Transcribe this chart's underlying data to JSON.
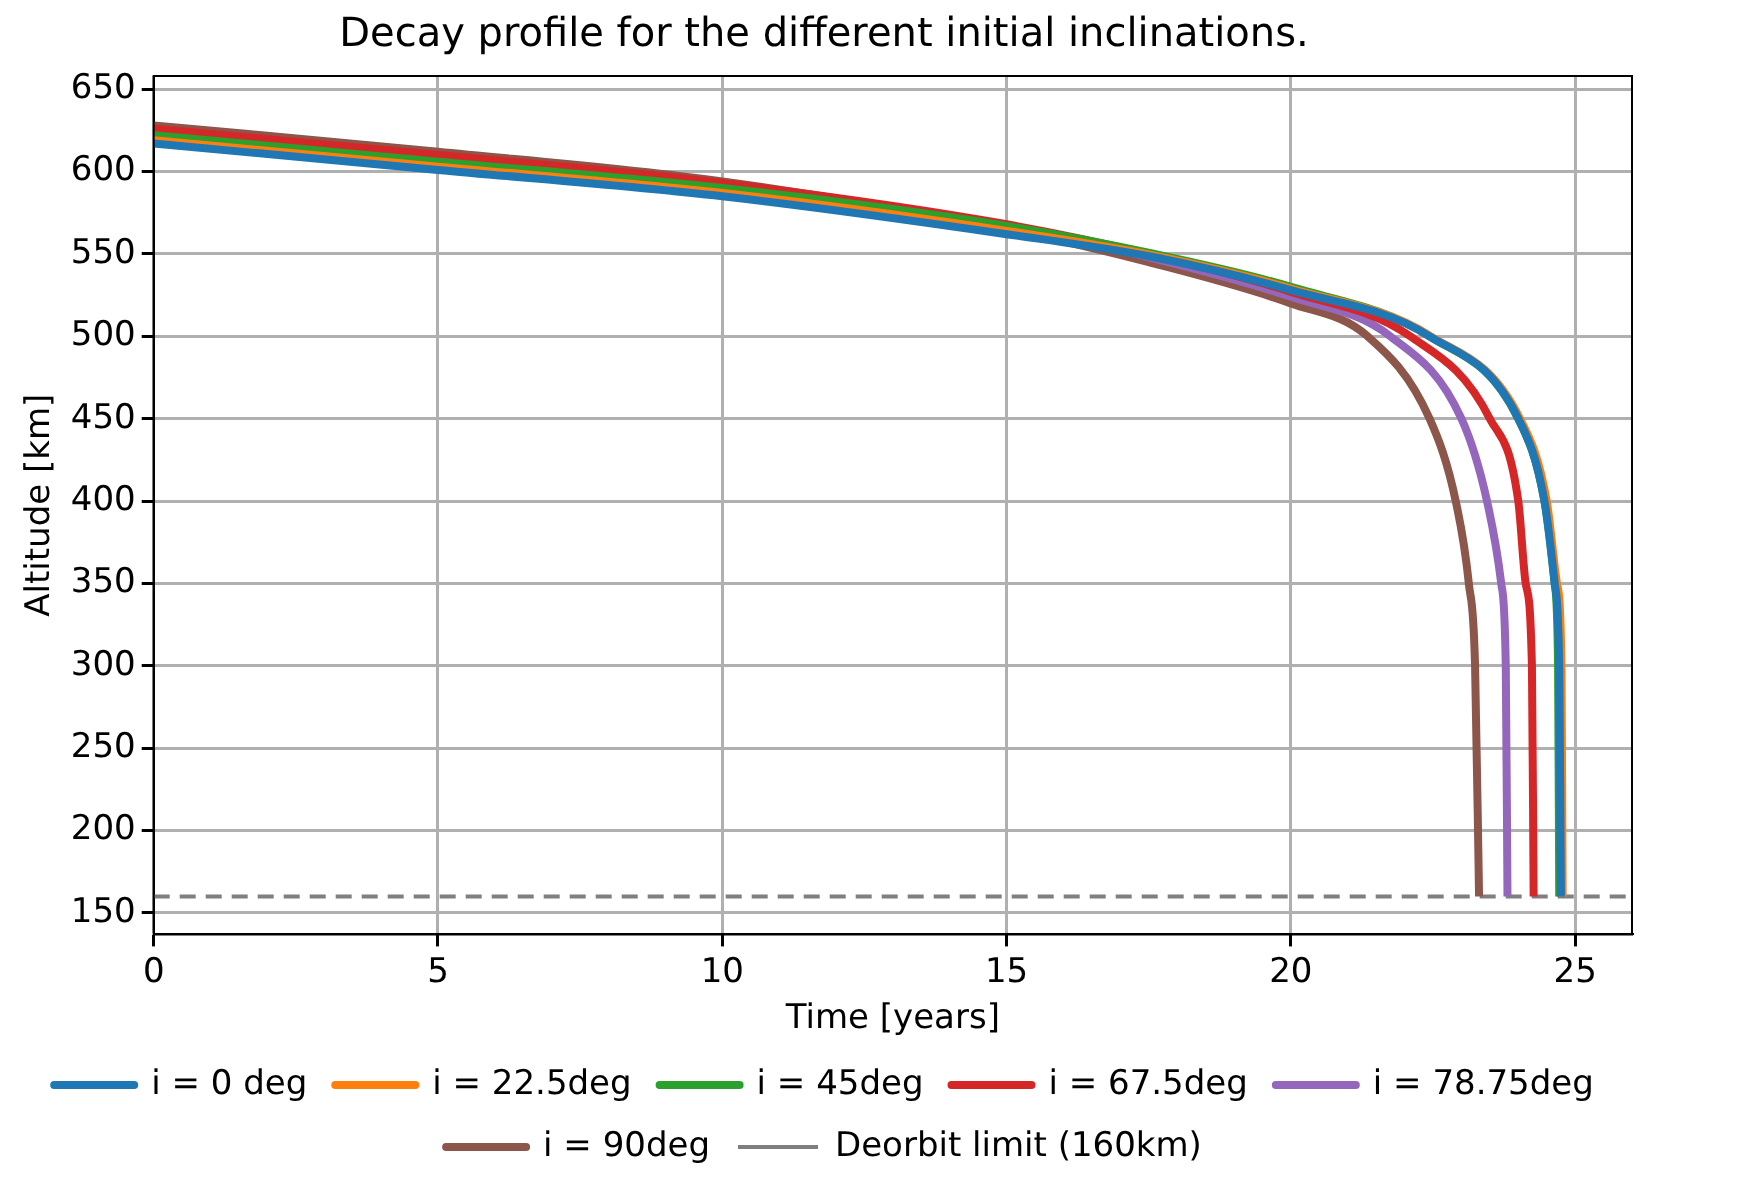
{
  "chart_data": {
    "type": "line",
    "title": "Decay profile for the different initial inclinations.",
    "xlabel": "Time [years]",
    "ylabel": "Altitude [km]",
    "xlim": [
      0,
      26
    ],
    "xticks": [
      0,
      5,
      10,
      15,
      20,
      25
    ],
    "ylim": [
      137,
      658
    ],
    "yticks": [
      150,
      200,
      250,
      300,
      350,
      400,
      450,
      500,
      550,
      600,
      650
    ],
    "grid": true,
    "legend": "bottom",
    "line_style": "solid",
    "marker": "none",
    "series": [
      {
        "name": "i = 0 deg",
        "color": "#1f77b4",
        "x": [
          0,
          5,
          10,
          15,
          17.6,
          20,
          22.44,
          24.0,
          24.46,
          24.64,
          24.72,
          24.75
        ],
        "values": [
          617,
          601,
          585,
          562,
          548,
          528,
          500,
          450,
          400,
          350,
          300,
          160
        ]
      },
      {
        "name": "i = 22.5deg",
        "color": "#ff7f0e",
        "x": [
          0,
          5,
          10,
          15,
          17.6,
          20,
          22.46,
          24.03,
          24.5,
          24.68,
          24.76,
          24.78
        ],
        "values": [
          619,
          603,
          587,
          564,
          549,
          529,
          500,
          450,
          400,
          350,
          300,
          160
        ]
      },
      {
        "name": "i = 45deg",
        "color": "#2ca02c",
        "x": [
          0,
          5,
          10,
          15,
          17.6,
          20,
          22.44,
          24.0,
          24.46,
          24.64,
          24.7,
          24.72
        ],
        "values": [
          622,
          606,
          590,
          567,
          550,
          530,
          500,
          450,
          400,
          350,
          300,
          160
        ]
      },
      {
        "name": "i = 67.5deg",
        "color": "#d62728",
        "x": [
          0,
          5,
          10,
          15,
          17.5,
          20,
          22.1,
          23.5,
          24.0,
          24.13,
          24.24,
          24.27
        ],
        "values": [
          626,
          610,
          593,
          568,
          550,
          527,
          500,
          450,
          400,
          350,
          300,
          160
        ]
      },
      {
        "name": "i = 78.75deg",
        "color": "#9467bd",
        "x": [
          10,
          15,
          17.5,
          20,
          21.75,
          23.0,
          23.45,
          23.7,
          23.78,
          23.81
        ],
        "values": [
          591,
          567,
          548,
          524,
          500,
          450,
          400,
          350,
          300,
          160
        ]
      },
      {
        "name": "i = 90deg",
        "color": "#8c564b",
        "x": [
          0,
          5,
          10,
          15,
          17.5,
          20,
          21.35,
          22.44,
          22.9,
          23.13,
          23.24,
          23.31
        ],
        "values": [
          628,
          612,
          594,
          565,
          545,
          520,
          500,
          450,
          400,
          350,
          300,
          160
        ]
      }
    ],
    "ref_lines": [
      {
        "axis": "y",
        "value": 160,
        "label": "Deorbit limit (160km)",
        "color": "#7f7f7f",
        "line_style": "dashed"
      }
    ]
  }
}
